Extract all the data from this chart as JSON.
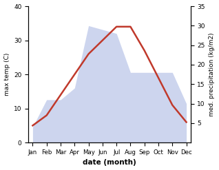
{
  "months": [
    "Jan",
    "Feb",
    "Mar",
    "Apr",
    "May",
    "Jun",
    "Jul",
    "Aug",
    "Sep",
    "Oct",
    "Nov",
    "Dec"
  ],
  "max_temp": [
    5,
    8,
    14,
    20,
    26,
    30,
    34,
    34,
    27,
    19,
    11,
    6
  ],
  "precipitation": [
    4,
    11,
    11,
    14,
    30,
    29,
    28,
    18,
    18,
    18,
    18,
    10
  ],
  "temp_color": "#c0392b",
  "precip_fill_color": "#b8c4e8",
  "title": "",
  "xlabel": "date (month)",
  "ylabel_left": "max temp (C)",
  "ylabel_right": "med. precipitation (kg/m2)",
  "ylim_left": [
    0,
    40
  ],
  "ylim_right": [
    0,
    35
  ],
  "yticks_left": [
    0,
    10,
    20,
    30,
    40
  ],
  "yticks_right": [
    5,
    10,
    15,
    20,
    25,
    30,
    35
  ],
  "background_color": "#ffffff",
  "temp_linewidth": 1.8
}
